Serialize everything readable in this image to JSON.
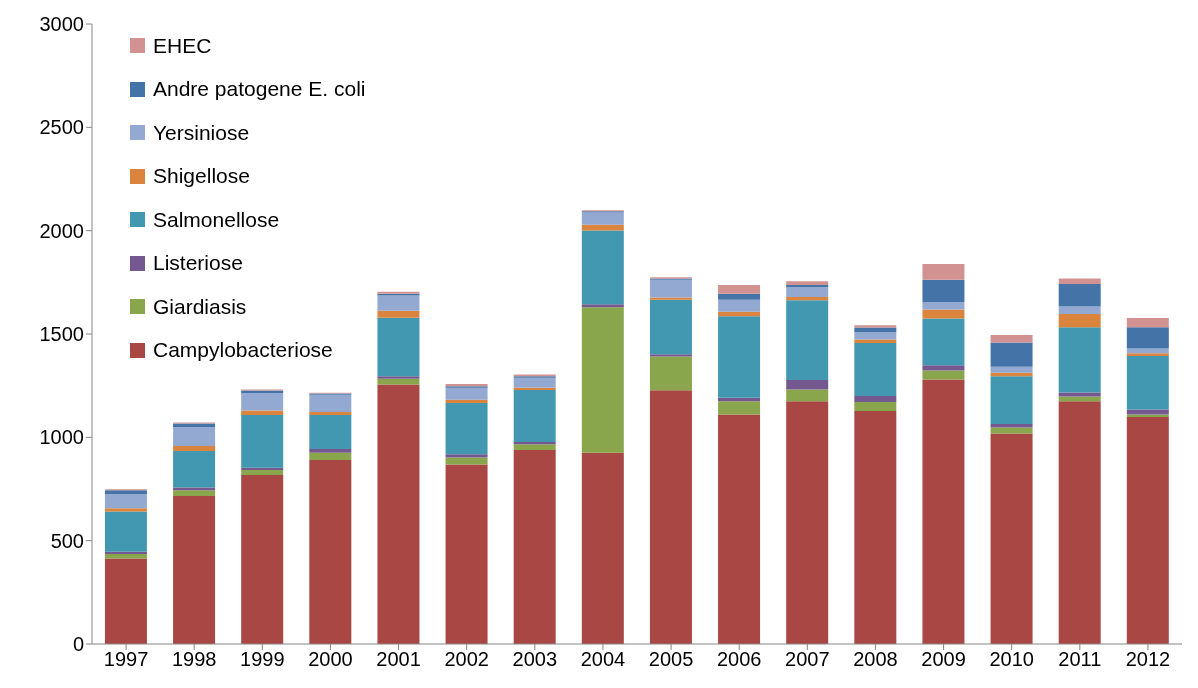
{
  "chart_data": {
    "type": "bar",
    "stacked": true,
    "legend": "top left",
    "categories": [
      "1997",
      "1998",
      "1999",
      "2000",
      "2001",
      "2002",
      "2003",
      "2004",
      "2005",
      "2006",
      "2007",
      "2008",
      "2009",
      "2010",
      "2011",
      "2012"
    ],
    "ylim": [
      0,
      3000
    ],
    "yticks": [
      0,
      500,
      1000,
      1500,
      2000,
      2500,
      3000
    ],
    "series": [
      {
        "name": "Campylobacteriose",
        "color": "#a94744",
        "values": [
          414,
          716,
          818,
          890,
          1256,
          869,
          939,
          926,
          1228,
          1111,
          1175,
          1127,
          1280,
          1019,
          1175,
          1098
        ]
      },
      {
        "name": "Giardiasis",
        "color": "#8aa64c",
        "values": [
          21,
          28,
          24,
          36,
          27,
          33,
          27,
          704,
          163,
          64,
          57,
          44,
          43,
          28,
          23,
          13
        ]
      },
      {
        "name": "Listeriose",
        "color": "#75588f",
        "values": [
          11,
          13,
          11,
          17,
          13,
          16,
          11,
          14,
          11,
          16,
          45,
          29,
          26,
          17,
          19,
          24
        ]
      },
      {
        "name": "Salmonellose",
        "color": "#4298b0",
        "values": [
          195,
          177,
          255,
          165,
          283,
          248,
          252,
          357,
          264,
          395,
          386,
          257,
          226,
          232,
          316,
          258
        ]
      },
      {
        "name": "Shigellose",
        "color": "#db843d",
        "values": [
          16,
          24,
          22,
          14,
          34,
          16,
          11,
          28,
          11,
          22,
          16,
          16,
          43,
          17,
          64,
          14
        ]
      },
      {
        "name": "Yersiniose",
        "color": "#94a9d2",
        "values": [
          69,
          92,
          84,
          84,
          73,
          58,
          48,
          59,
          86,
          58,
          47,
          35,
          37,
          29,
          36,
          23
        ]
      },
      {
        "name": "Andre patogene E. coli",
        "color": "#4473a8",
        "values": [
          18,
          17,
          13,
          6,
          9,
          7,
          8,
          6,
          5,
          29,
          11,
          23,
          108,
          117,
          109,
          103
        ]
      },
      {
        "name": "EHEC",
        "color": "#d29291",
        "values": [
          5,
          5,
          5,
          4,
          10,
          11,
          8,
          5,
          6,
          42,
          18,
          11,
          76,
          36,
          26,
          45
        ]
      }
    ]
  }
}
